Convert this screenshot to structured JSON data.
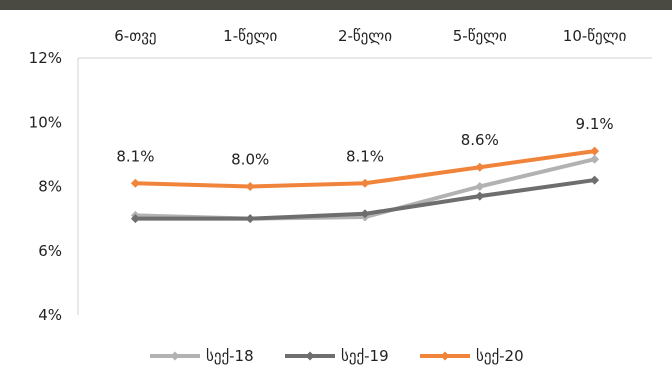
{
  "chart_data": {
    "type": "line",
    "title": "",
    "xlabel": "",
    "ylabel": "",
    "categories": [
      "6-თვე",
      "1-წელი",
      "2-წელი",
      "5-წელი",
      "10-წელი"
    ],
    "ylim": [
      0.04,
      0.12
    ],
    "yticks": [
      0.04,
      0.06,
      0.08,
      0.1,
      0.12
    ],
    "ytick_labels": [
      "4%",
      "6%",
      "8%",
      "10%",
      "12%"
    ],
    "x_axis_position": "top",
    "grid": false,
    "legend": "bottom",
    "series": [
      {
        "name": "სექ-18",
        "color": "#b2b2b2",
        "values": [
          0.071,
          0.07,
          0.0705,
          0.08,
          0.0885
        ]
      },
      {
        "name": "სექ-19",
        "color": "#6e6e6e",
        "values": [
          0.07,
          0.07,
          0.0715,
          0.077,
          0.082
        ]
      },
      {
        "name": "სექ-20",
        "color": "#f0843b",
        "values": [
          0.081,
          0.08,
          0.081,
          0.086,
          0.091
        ]
      }
    ],
    "data_labels": {
      "series": "სექ-20",
      "texts": [
        "8.1%",
        "8.0%",
        "8.1%",
        "8.6%",
        "9.1%"
      ]
    }
  }
}
